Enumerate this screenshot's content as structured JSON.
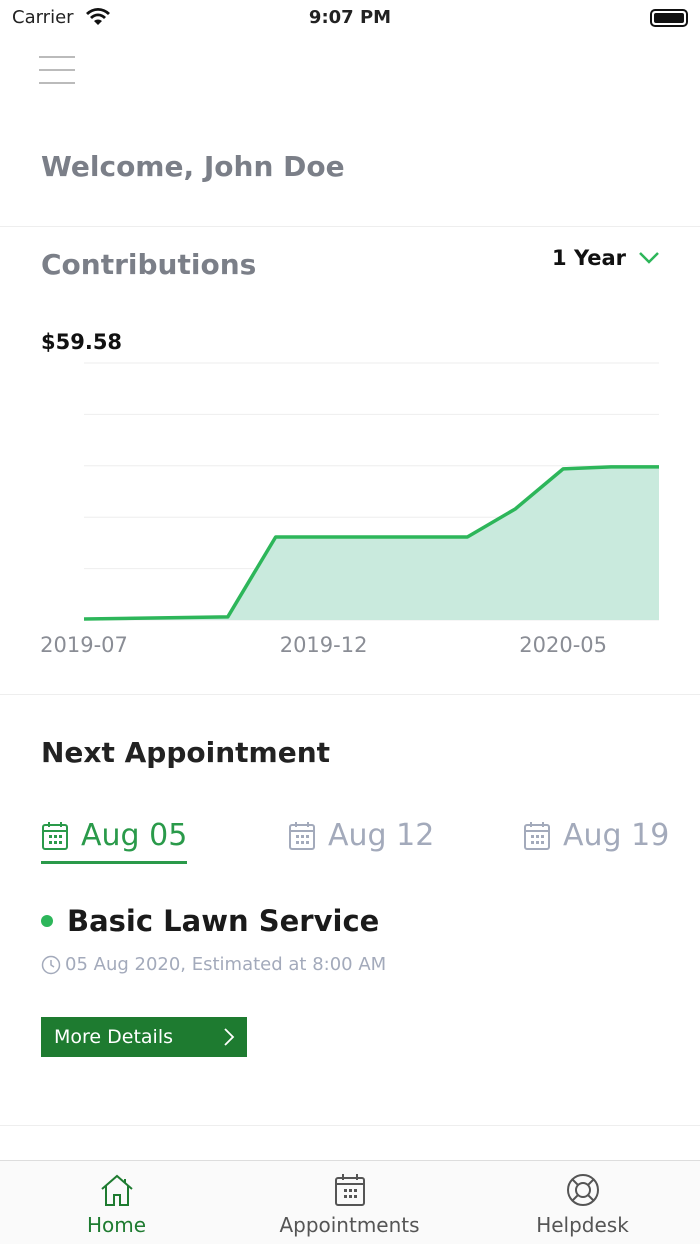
{
  "status_bar": {
    "carrier": "Carrier",
    "time": "9:07 PM"
  },
  "header": {
    "welcome": "Welcome, John Doe"
  },
  "contributions": {
    "title": "Contributions",
    "period": "1 Year",
    "amount": "$59.58",
    "colors": {
      "line": "#2db65a",
      "fill": "#c9eadd"
    }
  },
  "chart_data": {
    "type": "area",
    "x": [
      "2019-07",
      "2019-10",
      "2019-11",
      "2020-03",
      "2020-04",
      "2020-05",
      "2020-06",
      "2020-07"
    ],
    "values": [
      0.4,
      1.2,
      32.3,
      32.3,
      43.2,
      58.8,
      59.58,
      59.58
    ],
    "tick_labels": [
      "2019-07",
      "2019-12",
      "2020-05"
    ],
    "ylim": [
      0,
      100
    ],
    "grid": true
  },
  "appointment": {
    "title": "Next Appointment",
    "dates": [
      {
        "label": "Aug 05",
        "active": true
      },
      {
        "label": "Aug 12",
        "active": false
      },
      {
        "label": "Aug 19",
        "active": false
      }
    ],
    "service": "Basic Lawn Service",
    "when": "05 Aug 2020, Estimated at 8:00 AM",
    "button": "More Details"
  },
  "tabs": [
    {
      "label": "Home",
      "icon": "home-icon"
    },
    {
      "label": "Appointments",
      "icon": "calendar-icon"
    },
    {
      "label": "Helpdesk",
      "icon": "lifebuoy-icon"
    }
  ]
}
